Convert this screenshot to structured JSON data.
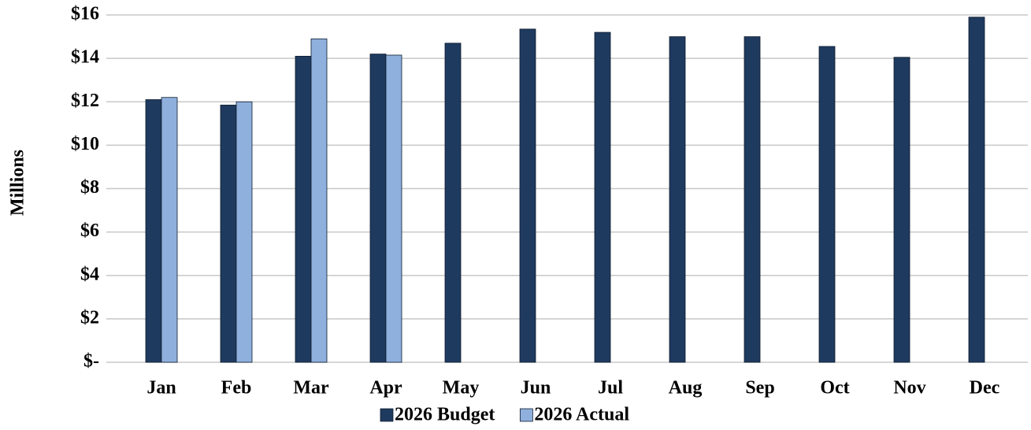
{
  "chart_data": {
    "type": "bar",
    "y_label": "Millions",
    "categories": [
      "Jan",
      "Feb",
      "Mar",
      "Apr",
      "May",
      "Jun",
      "Jul",
      "Aug",
      "Sep",
      "Oct",
      "Nov",
      "Dec"
    ],
    "series": [
      {
        "name": "2026 Budget",
        "color": "#1f3a5f",
        "values": [
          12.1,
          11.85,
          14.1,
          14.2,
          14.7,
          15.35,
          15.2,
          15.0,
          15.0,
          14.55,
          14.05,
          15.9
        ]
      },
      {
        "name": "2026 Actual",
        "color": "#8fb0dc",
        "values": [
          12.2,
          12.0,
          14.9,
          14.15,
          null,
          null,
          null,
          null,
          null,
          null,
          null,
          null
        ]
      }
    ],
    "ylim": [
      0,
      16
    ],
    "yticks": [
      {
        "value": 0,
        "label": "$-"
      },
      {
        "value": 2,
        "label": "$2"
      },
      {
        "value": 4,
        "label": "$4"
      },
      {
        "value": 6,
        "label": "$6"
      },
      {
        "value": 8,
        "label": "$8"
      },
      {
        "value": 10,
        "label": "$10"
      },
      {
        "value": 12,
        "label": "$12"
      },
      {
        "value": 14,
        "label": "$14"
      },
      {
        "value": 16,
        "label": "$16"
      }
    ],
    "grid": true,
    "legend": "bottom"
  }
}
